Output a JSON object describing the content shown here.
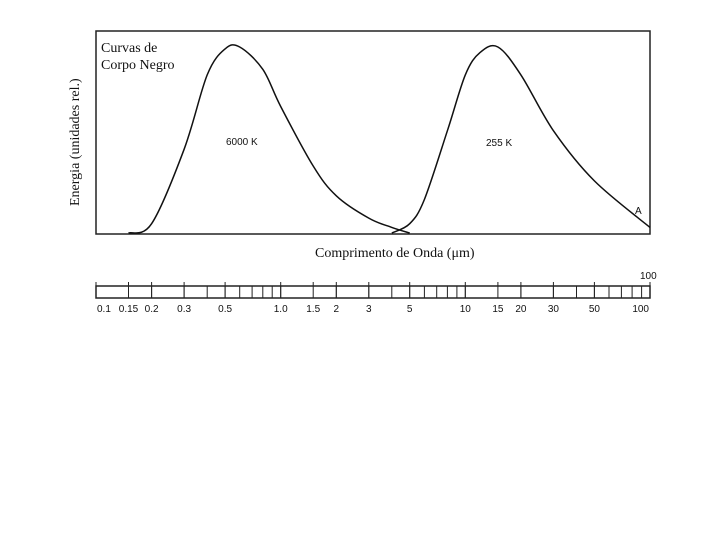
{
  "chart_data": {
    "type": "line",
    "title": "Curvas de Corpo Negro",
    "title_lines": [
      "Curvas de",
      "Corpo Negro"
    ],
    "xlabel": "Comprimento de Onda (μm)",
    "ylabel": "Energia (unidades rel.)",
    "x_scale": "log",
    "xlim": [
      0.1,
      100
    ],
    "ylim": [
      0,
      1
    ],
    "grid": false,
    "legend": "none",
    "series": [
      {
        "name": "6000 K",
        "x": [
          0.15,
          0.2,
          0.3,
          0.4,
          0.5,
          0.6,
          0.8,
          1.0,
          1.5,
          2.0,
          3.0,
          4.0,
          5.0
        ],
        "y": [
          0.0,
          0.05,
          0.45,
          0.85,
          0.99,
          1.0,
          0.88,
          0.68,
          0.36,
          0.2,
          0.08,
          0.03,
          0.0
        ]
      },
      {
        "name": "255 K",
        "x": [
          4.0,
          5.0,
          6.0,
          8.0,
          10.0,
          12.0,
          15.0,
          20.0,
          30.0,
          50.0,
          100.0
        ],
        "y": [
          0.0,
          0.05,
          0.18,
          0.55,
          0.85,
          0.97,
          1.0,
          0.85,
          0.55,
          0.28,
          0.03
        ]
      }
    ],
    "annotations": [
      "A"
    ],
    "scale_bar": {
      "tick_labels": [
        "0.1",
        "0.15",
        "0.2",
        "0.3",
        "0.5",
        "1.0",
        "1.5",
        "2",
        "3",
        "5",
        "10",
        "15",
        "20",
        "30",
        "50",
        "100"
      ],
      "tick_values": [
        0.1,
        0.15,
        0.2,
        0.3,
        0.5,
        1.0,
        1.5,
        2,
        3,
        5,
        10,
        15,
        20,
        30,
        50,
        100
      ],
      "end_label_top": "100"
    }
  }
}
